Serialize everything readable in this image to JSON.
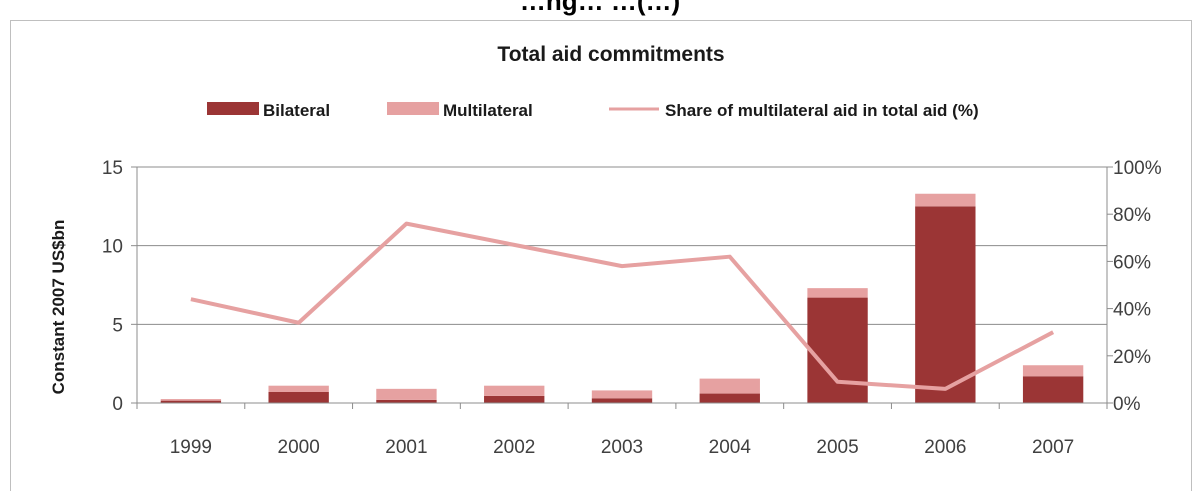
{
  "page": {
    "title": "…ng… …(…)"
  },
  "chart_data": {
    "type": "bar",
    "stacked": true,
    "title": "Total aid commitments",
    "ylabel": "Constant 2007 US$bn",
    "y2label": "",
    "categories": [
      "1999",
      "2000",
      "2001",
      "2002",
      "2003",
      "2004",
      "2005",
      "2006",
      "2007"
    ],
    "ylim": [
      0,
      15
    ],
    "yticks": [
      "0",
      "5",
      "10",
      "15"
    ],
    "y2lim": [
      0,
      100
    ],
    "y2ticks": [
      "0%",
      "20%",
      "40%",
      "60%",
      "80%",
      "100%"
    ],
    "grid": true,
    "legend_position": "top",
    "series": [
      {
        "name": "Bilateral",
        "kind": "bar",
        "color": "#9b3535",
        "values": [
          0.15,
          0.7,
          0.2,
          0.45,
          0.3,
          0.6,
          6.7,
          12.5,
          1.7
        ]
      },
      {
        "name": "Multilateral",
        "kind": "bar",
        "color": "#e6a1a1",
        "values": [
          0.1,
          0.4,
          0.7,
          0.65,
          0.5,
          0.95,
          0.6,
          0.8,
          0.7
        ]
      },
      {
        "name": "Share of multilateral  aid in total aid (%)",
        "kind": "line",
        "axis": "right",
        "color": "#e6a1a1",
        "values": [
          44,
          34,
          76,
          67,
          58,
          62,
          9,
          6,
          30
        ]
      }
    ]
  }
}
